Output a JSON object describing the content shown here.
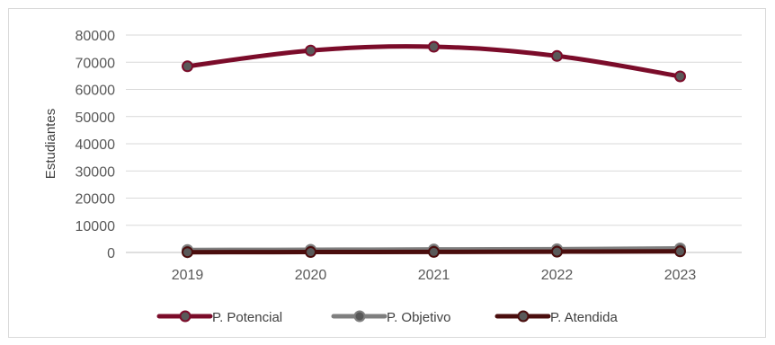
{
  "chart_data": {
    "type": "line",
    "title": "",
    "xlabel": "",
    "ylabel": "Estudiantes",
    "categories": [
      "2019",
      "2020",
      "2021",
      "2022",
      "2023"
    ],
    "ylim": [
      0,
      80000
    ],
    "yticks": [
      "0",
      "10000",
      "20000",
      "30000",
      "40000",
      "50000",
      "60000",
      "70000",
      "80000"
    ],
    "grid": "horizontal",
    "legend_position": "bottom",
    "series": [
      {
        "name": "P. Potencial",
        "color": "#7b0c2a",
        "values": [
          68500,
          74300,
          75700,
          72300,
          64800
        ]
      },
      {
        "name": "P. Objetivo",
        "color": "#7f7f7f",
        "values": [
          900,
          1000,
          1100,
          1200,
          1500
        ]
      },
      {
        "name": "P. Atendida",
        "color": "#4a0d0d",
        "values": [
          100,
          150,
          200,
          300,
          400
        ]
      }
    ]
  }
}
